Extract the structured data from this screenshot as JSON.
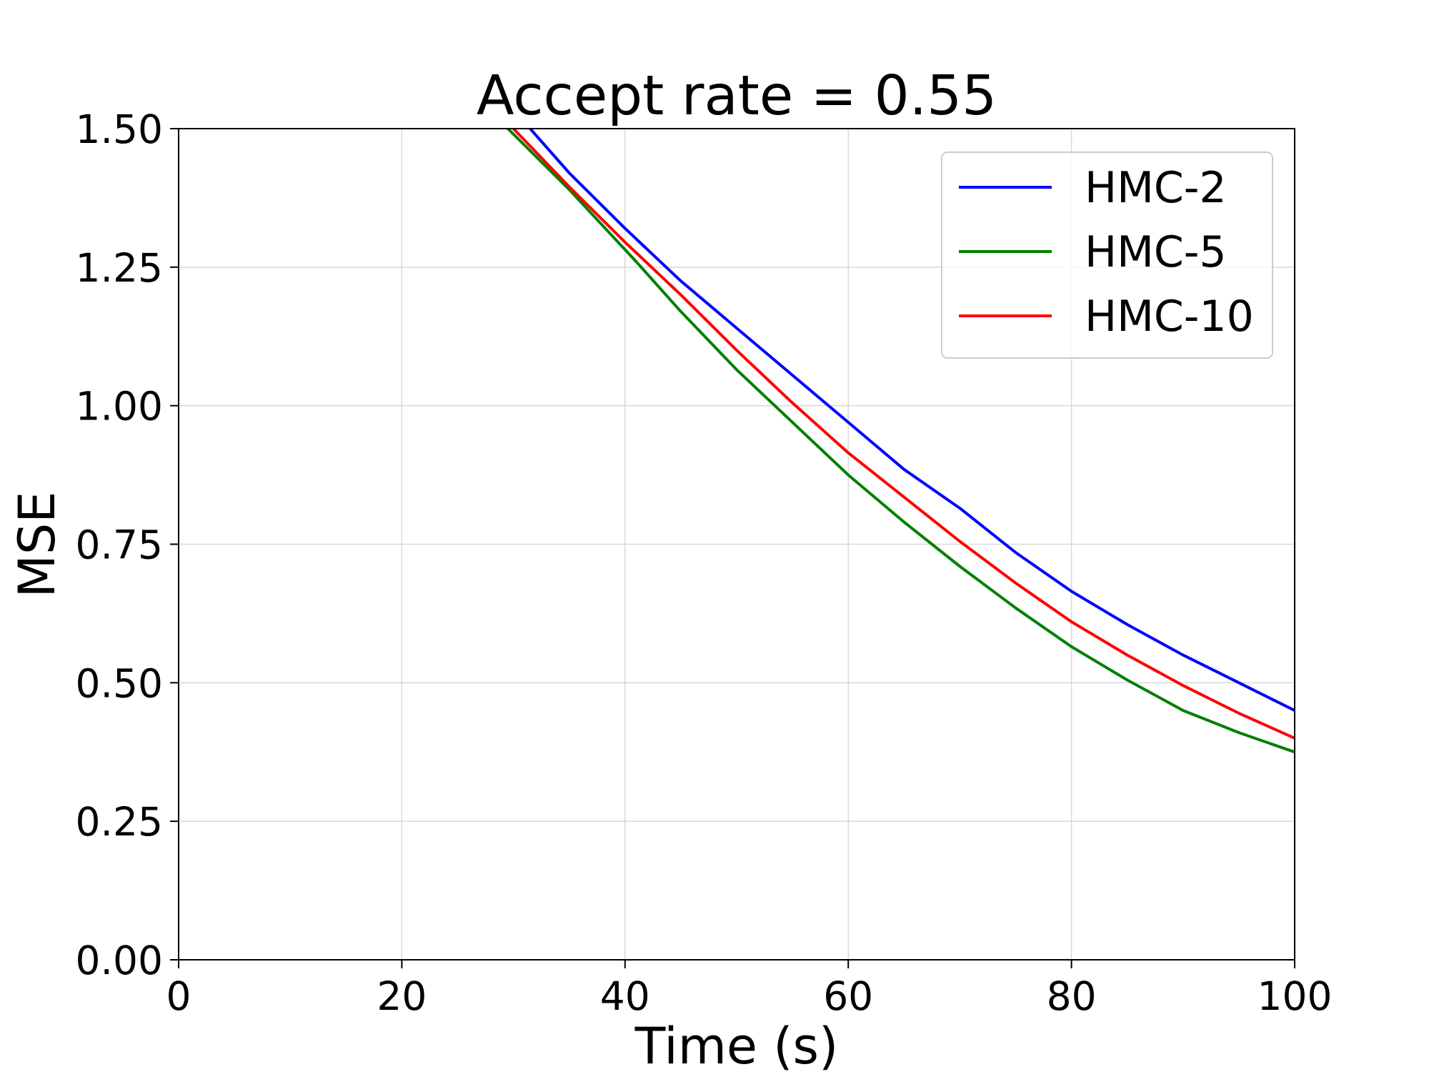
{
  "chart_data": {
    "type": "line",
    "title": "Accept rate = 0.55",
    "xlabel": "Time (s)",
    "ylabel": "MSE",
    "xlim": [
      0,
      100
    ],
    "ylim": [
      0,
      1.5
    ],
    "xticks": [
      0,
      20,
      40,
      60,
      80,
      100
    ],
    "xtick_labels": [
      "0",
      "20",
      "40",
      "60",
      "80",
      "100"
    ],
    "yticks": [
      0,
      0.25,
      0.5,
      0.75,
      1.0,
      1.25,
      1.5
    ],
    "ytick_labels": [
      "0.00",
      "0.25",
      "0.50",
      "0.75",
      "1.00",
      "1.25",
      "1.50"
    ],
    "grid": true,
    "legend_position": "top-right",
    "series": [
      {
        "name": "HMC-2",
        "color": "#0000ff",
        "x": [
          31.5,
          35,
          40,
          45,
          50,
          55,
          60,
          65,
          70,
          75,
          80,
          85,
          90,
          93,
          95,
          100
        ],
        "y": [
          1.5,
          1.42,
          1.32,
          1.225,
          1.14,
          1.055,
          0.97,
          0.885,
          0.815,
          0.735,
          0.665,
          0.605,
          0.55,
          0.52,
          0.5,
          0.45
        ]
      },
      {
        "name": "HMC-5",
        "color": "#008000",
        "x": [
          29.5,
          35,
          41,
          45,
          50,
          55,
          60,
          65,
          70,
          75,
          80,
          85,
          90,
          95,
          100
        ],
        "y": [
          1.5,
          1.39,
          1.26,
          1.17,
          1.065,
          0.97,
          0.875,
          0.79,
          0.71,
          0.635,
          0.565,
          0.505,
          0.45,
          0.41,
          0.375
        ]
      },
      {
        "name": "HMC-10",
        "color": "#ff0000",
        "x": [
          30,
          35,
          40,
          45,
          50,
          55,
          60,
          65,
          70,
          75,
          80,
          85,
          90,
          95,
          100
        ],
        "y": [
          1.5,
          1.395,
          1.295,
          1.2,
          1.1,
          1.005,
          0.915,
          0.835,
          0.755,
          0.68,
          0.61,
          0.55,
          0.495,
          0.445,
          0.4
        ]
      }
    ]
  }
}
